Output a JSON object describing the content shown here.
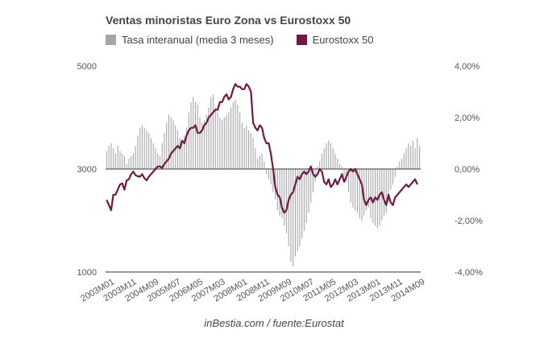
{
  "chart_data": {
    "type": "bar+line",
    "title": "Ventas minoristas Euro Zona vs Eurostoxx 50",
    "source": "inBestia.com / fuente:Eurostat",
    "legend": [
      {
        "name": "Tasa interanual (media 3 meses)",
        "color": "#a6a6a6"
      },
      {
        "name": "Eurostoxx 50",
        "color": "#6e1a45"
      }
    ],
    "legend_position": "top-left",
    "left_axis": {
      "ticks": [
        "5000",
        "3000",
        "1000"
      ],
      "range": [
        1000,
        5000
      ]
    },
    "right_axis": {
      "ticks": [
        "4,00%",
        "2,00%",
        "0,00%",
        "-2,00%",
        "-4,00%"
      ],
      "range": [
        -4,
        4
      ]
    },
    "x_tick_labels": [
      "2003M01",
      "2003M11",
      "2004M09",
      "2005M07",
      "2006M05",
      "2007M03",
      "2008M01",
      "2008M11",
      "2009M09",
      "2010M07",
      "2011M05",
      "2012M03",
      "2013M01",
      "2013M11",
      "2014M09"
    ],
    "start_period": "2003M01",
    "series": [
      {
        "name": "Tasa interanual (media 3 meses)",
        "axis": "right",
        "kind": "bar",
        "values": [
          0.7,
          0.9,
          1.0,
          0.8,
          0.6,
          0.9,
          0.7,
          0.6,
          0.5,
          0.2,
          0.4,
          0.5,
          0.6,
          0.9,
          1.3,
          1.6,
          1.7,
          1.6,
          1.5,
          1.4,
          1.2,
          1.0,
          0.8,
          0.6,
          0.5,
          1.0,
          1.4,
          1.8,
          2.1,
          2.0,
          1.9,
          1.7,
          1.5,
          1.2,
          1.0,
          1.3,
          1.6,
          2.2,
          2.6,
          2.8,
          2.6,
          2.5,
          2.0,
          1.8,
          1.9,
          2.1,
          2.4,
          2.8,
          2.9,
          2.4,
          2.2,
          2.0,
          1.9,
          2.0,
          2.1,
          2.2,
          2.4,
          2.6,
          2.7,
          2.5,
          2.2,
          1.8,
          1.6,
          1.7,
          1.5,
          1.4,
          1.2,
          0.8,
          0.4,
          0.5,
          0.6,
          0.3,
          -0.2,
          -0.4,
          -0.6,
          -0.9,
          -1.2,
          -1.6,
          -1.8,
          -1.9,
          -2.2,
          -2.5,
          -3.0,
          -3.6,
          -3.8,
          -3.4,
          -3.2,
          -3.0,
          -2.7,
          -2.4,
          -2.1,
          -1.7,
          -1.3,
          -0.9,
          -0.5,
          0.1,
          0.3,
          0.6,
          0.8,
          1.0,
          1.1,
          1.0,
          0.8,
          0.6,
          0.4,
          0.2,
          0.1,
          -0.3,
          -0.5,
          -0.9,
          -1.3,
          -1.5,
          -1.6,
          -1.7,
          -1.9,
          -2.0,
          -1.8,
          -1.6,
          -1.5,
          -1.9,
          -2.1,
          -2.2,
          -2.3,
          -2.2,
          -2.0,
          -1.8,
          -1.7,
          -1.3,
          -0.8,
          -0.6,
          -0.3,
          0.1,
          0.3,
          0.4,
          0.6,
          0.8,
          1.0,
          0.9,
          1.1,
          0.8,
          1.2,
          0.9
        ]
      },
      {
        "name": "Eurostoxx 50",
        "axis": "left",
        "kind": "line",
        "values": [
          2400,
          2300,
          2200,
          2500,
          2500,
          2600,
          2700,
          2720,
          2600,
          2780,
          2800,
          2900,
          2950,
          2880,
          2860,
          2850,
          2900,
          2820,
          2780,
          2850,
          2900,
          2950,
          3000,
          3050,
          3050,
          3020,
          3100,
          3150,
          3200,
          3300,
          3350,
          3400,
          3450,
          3400,
          3550,
          3500,
          3650,
          3750,
          3800,
          3800,
          3850,
          3700,
          3700,
          3750,
          3850,
          3900,
          4000,
          4050,
          4100,
          4150,
          4150,
          4300,
          4300,
          4400,
          4450,
          4350,
          4400,
          4550,
          4650,
          4600,
          4600,
          4550,
          4550,
          4650,
          4600,
          4500,
          3900,
          3800,
          3750,
          3850,
          3800,
          3600,
          3500,
          3500,
          3300,
          3000,
          2650,
          2500,
          2450,
          2250,
          2150,
          2200,
          2400,
          2500,
          2550,
          2700,
          2850,
          2800,
          2900,
          2950,
          2900,
          2950,
          3050,
          2900,
          2850,
          2900,
          3000,
          2950,
          2750,
          2700,
          2800,
          2650,
          2700,
          2800,
          2700,
          2800,
          2900,
          2750,
          2850,
          2950,
          3000,
          2950,
          3000,
          2900,
          2800,
          2700,
          2400,
          2300,
          2400,
          2450,
          2350,
          2450,
          2400,
          2500,
          2550,
          2400,
          2300,
          2500,
          2350,
          2300,
          2450,
          2500,
          2550,
          2600,
          2650,
          2700,
          2650,
          2700,
          2750,
          2800,
          2700
        ]
      }
    ]
  }
}
